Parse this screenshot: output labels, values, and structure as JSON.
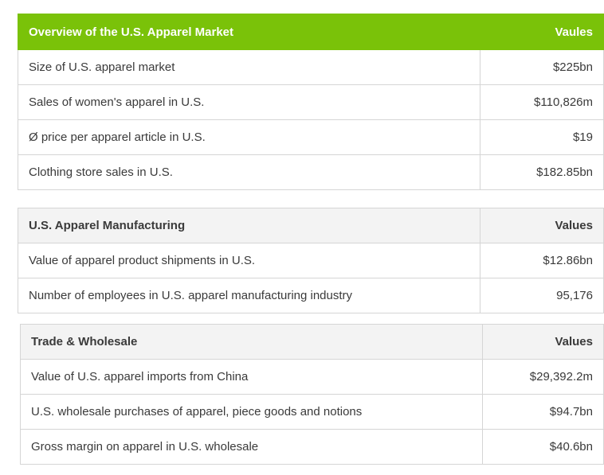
{
  "tables": [
    {
      "header": {
        "label": "Overview of the U.S. Apparel Market",
        "value": "Vaules"
      },
      "rows": [
        {
          "label": "Size of U.S. apparel market",
          "value": "$225bn"
        },
        {
          "label": "Sales of women's apparel in U.S.",
          "value": "$110,826m"
        },
        {
          "label": "Ø price per apparel article in U.S.",
          "value": "$19"
        },
        {
          "label": "Clothing store sales in U.S.",
          "value": "$182.85bn"
        }
      ]
    },
    {
      "header": {
        "label": "U.S. Apparel Manufacturing",
        "value": "Values"
      },
      "rows": [
        {
          "label": "Value of apparel product shipments in U.S.",
          "value": "$12.86bn"
        },
        {
          "label": "Number of employees in U.S. apparel manufacturing industry",
          "value": "95,176"
        }
      ]
    },
    {
      "header": {
        "label": "Trade & Wholesale",
        "value": "Values"
      },
      "rows": [
        {
          "label": "Value of U.S. apparel imports from China",
          "value": "$29,392.2m"
        },
        {
          "label": "U.S. wholesale purchases of apparel, piece goods and notions",
          "value": "$94.7bn"
        },
        {
          "label": "Gross margin on apparel in U.S. wholesale",
          "value": "$40.6bn"
        }
      ]
    }
  ],
  "colors": {
    "accent_header": "#7ac209",
    "sub_header": "#f3f3f3",
    "border": "#d5d5d5",
    "text": "#3a3a3a"
  }
}
